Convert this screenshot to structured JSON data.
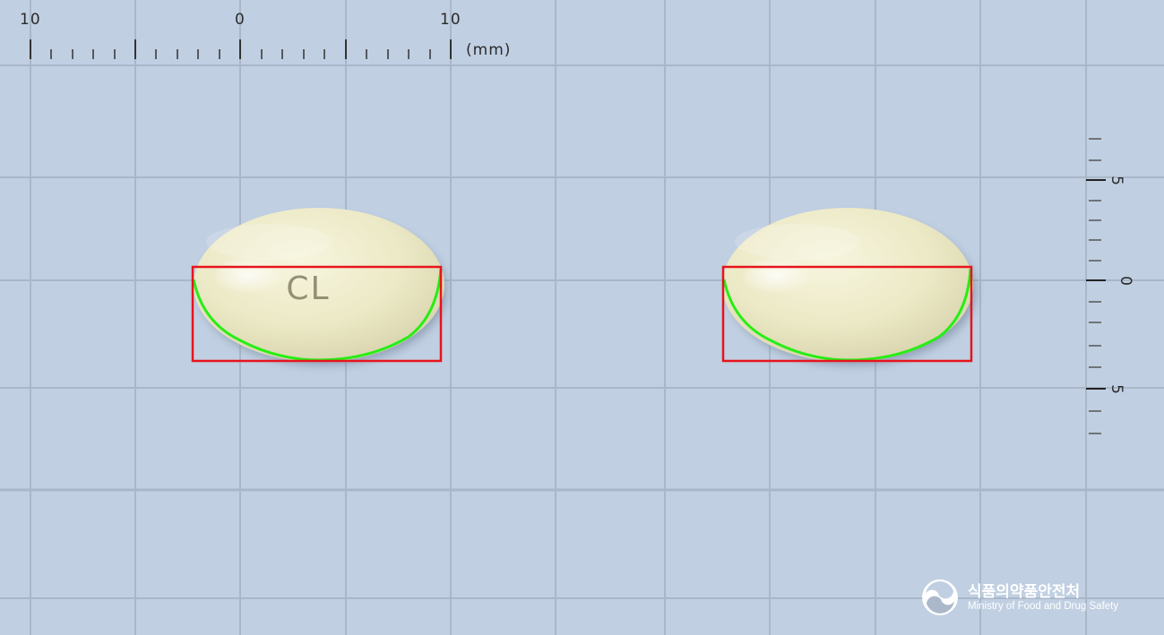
{
  "ruler_top": {
    "labels": [
      "10",
      "0",
      "10"
    ],
    "unit": "(mm)"
  },
  "ruler_right": {
    "labels": [
      "5",
      "0",
      "5"
    ]
  },
  "pills": [
    {
      "imprint": "CL"
    },
    {
      "imprint": ""
    }
  ],
  "logo": {
    "name_ko": "식품의약품안전처",
    "name_en": "Ministry of Food and Drug Safety"
  },
  "colors": {
    "background": "#c0cfe2",
    "grid": "#a9b7c8",
    "pill": "#efeccb",
    "bbox": "#e8141c",
    "contour": "#27ee13"
  }
}
